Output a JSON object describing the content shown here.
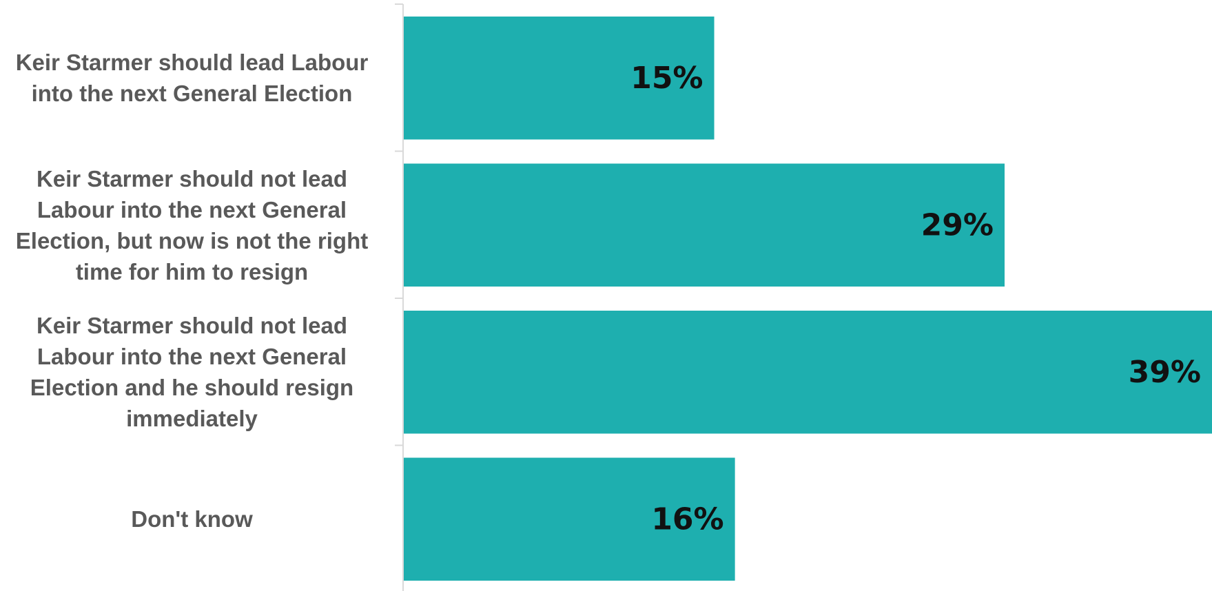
{
  "colors": {
    "bar": "#1eafaf",
    "axis": "#d9d9d9",
    "label_text": "#595959",
    "value_text": "#111111"
  },
  "chart_data": {
    "type": "bar",
    "orientation": "horizontal",
    "title": "",
    "xlabel": "",
    "ylabel": "",
    "grid": false,
    "legend": "none",
    "categories": [
      "Keir Starmer should lead Labour into the next General Election",
      "Keir Starmer should not lead Labour into the next General Election, but now is not the right time for him to resign",
      "Keir Starmer should not lead Labour into the next General Election and he should resign immediately",
      "Don't know"
    ],
    "values": [
      15,
      29,
      39,
      16
    ],
    "value_labels": [
      "15%",
      "29%",
      "39%",
      "16%"
    ],
    "xlim": [
      0,
      39
    ]
  }
}
